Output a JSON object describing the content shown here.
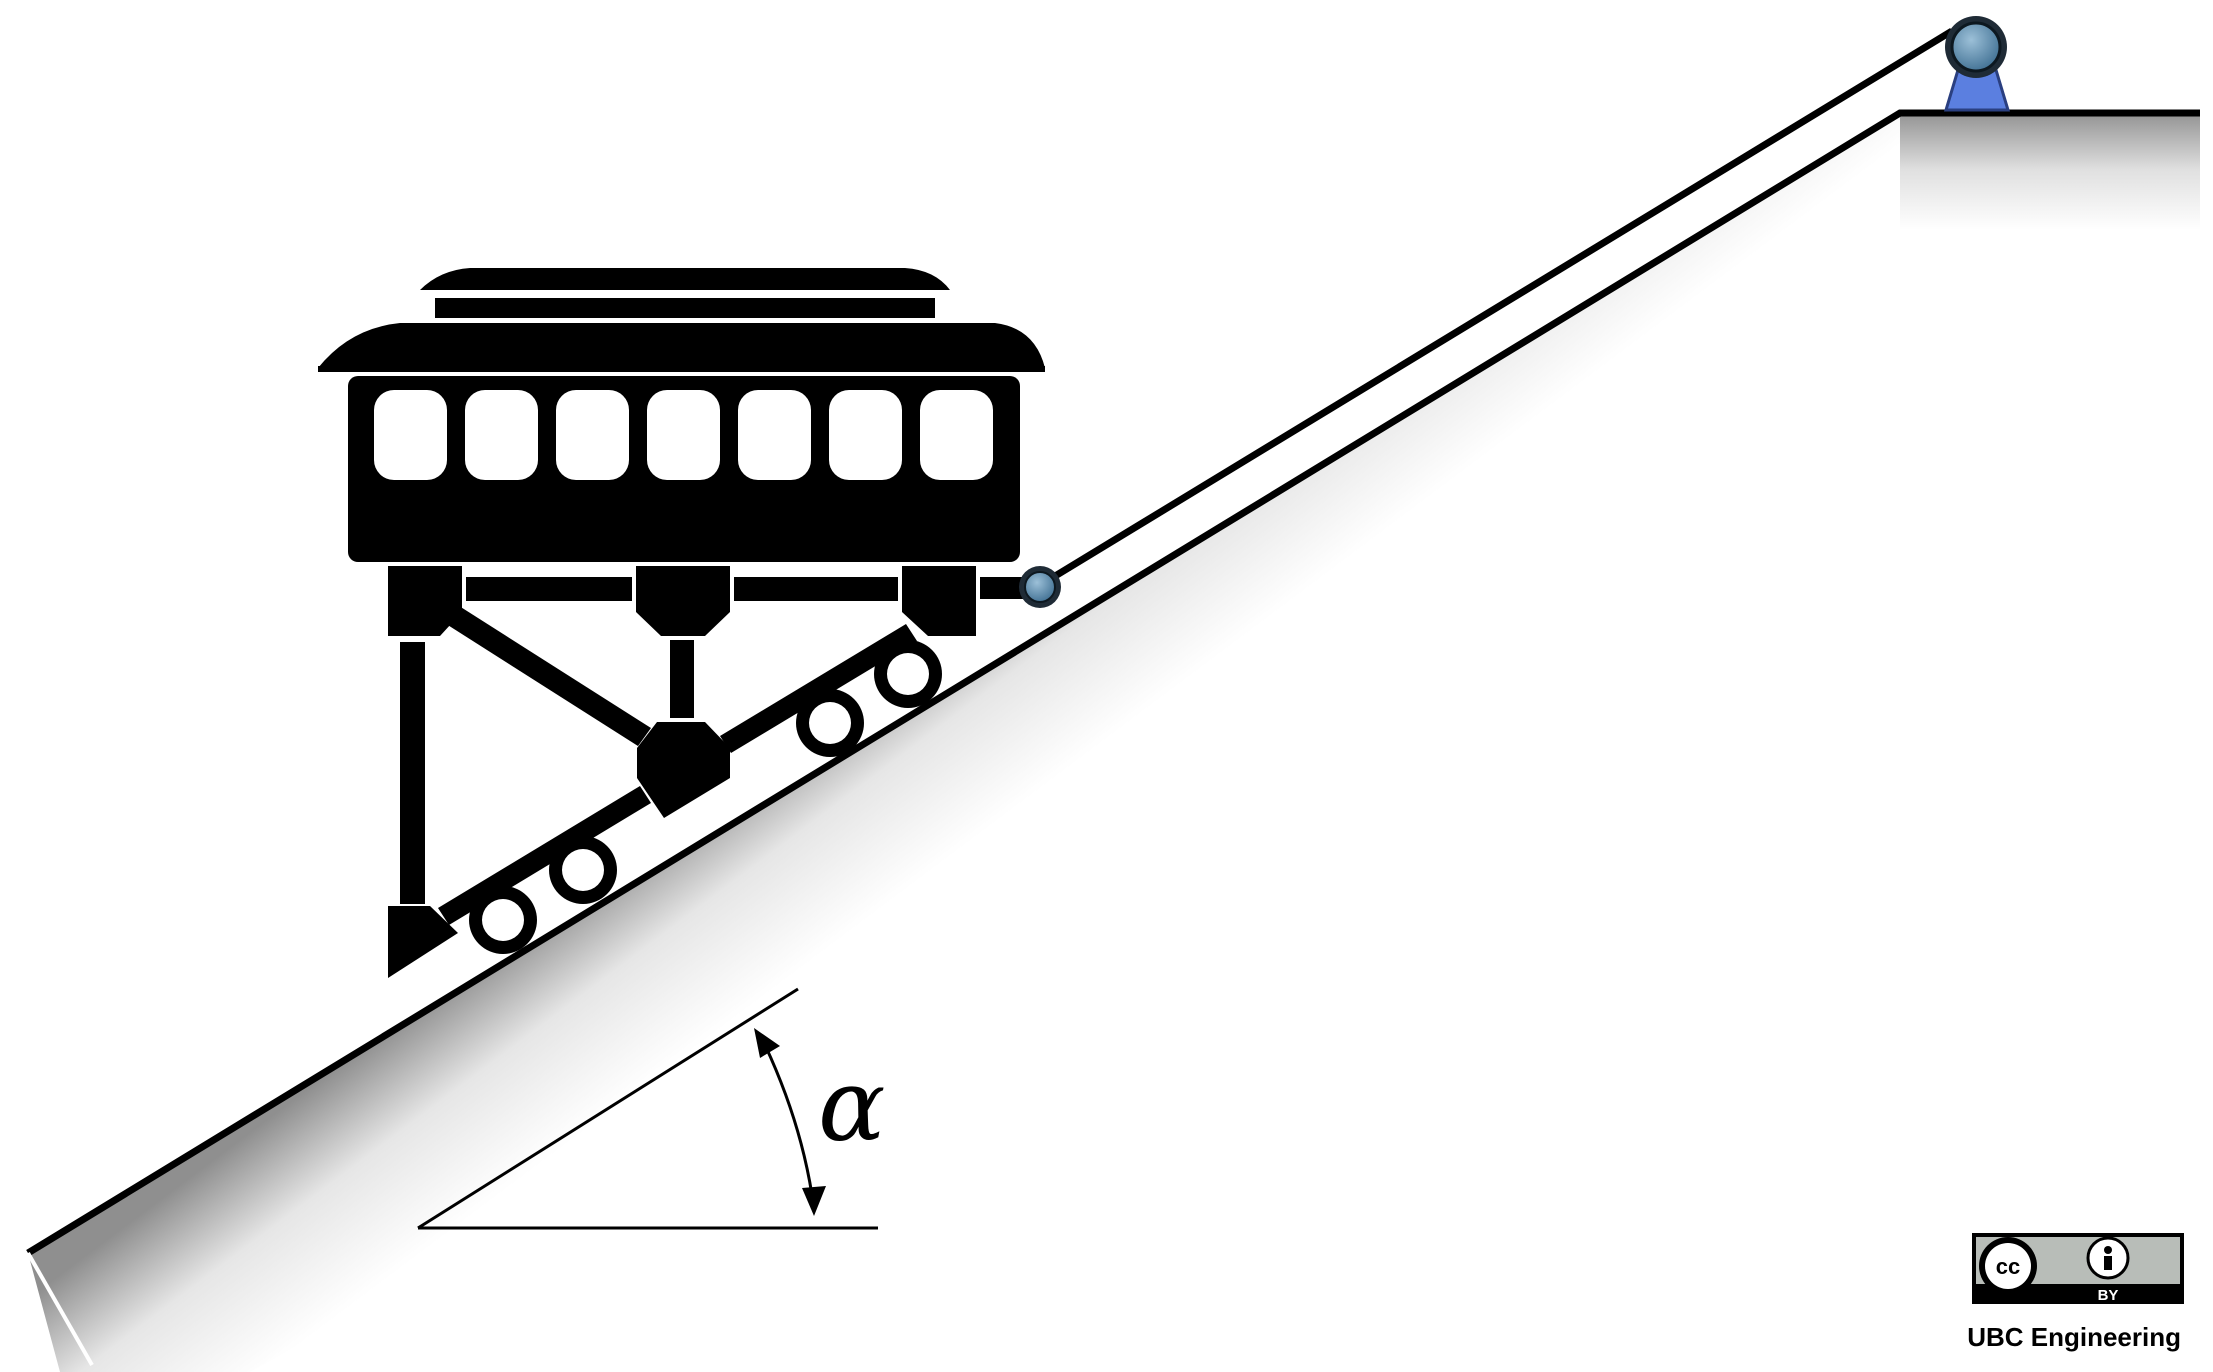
{
  "diagram": {
    "angle_symbol": "α",
    "license": {
      "cc_text": "cc",
      "by_text": "BY"
    },
    "credit": "UBC Engineering",
    "colors": {
      "ink": "#000000",
      "cable_pulley": "#4f7c9c",
      "pulley_stand": "#5b7fe0",
      "badge_gray": "#b8bdb8"
    }
  }
}
